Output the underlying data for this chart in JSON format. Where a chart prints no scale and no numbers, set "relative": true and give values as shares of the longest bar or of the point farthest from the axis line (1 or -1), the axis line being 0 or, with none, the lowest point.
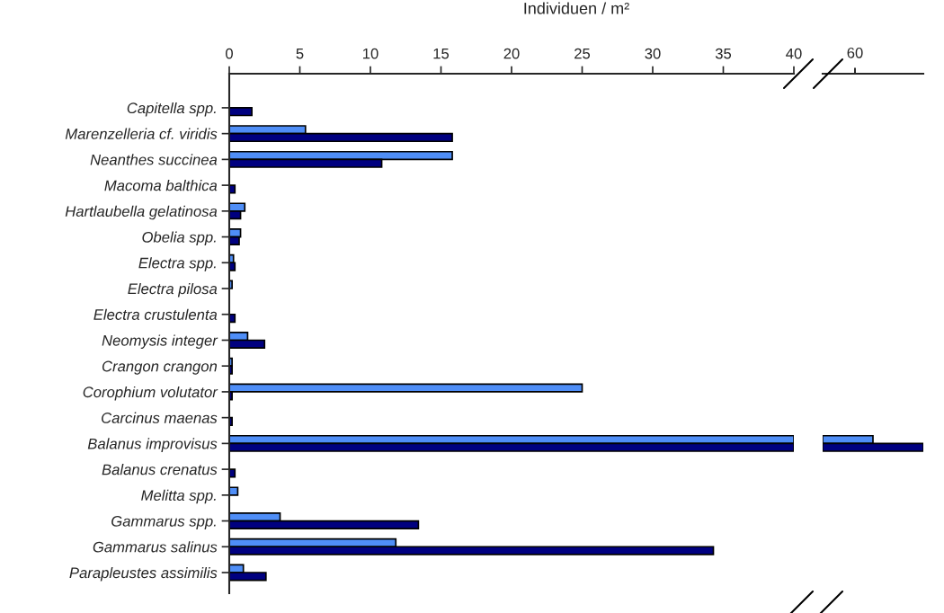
{
  "chart_data": [
    {
      "type": "bar",
      "orientation": "horizontal",
      "xlabel": "Individuen / m²",
      "categories": [
        "Capitella spp.",
        "Marenzelleria cf. viridis",
        "Neanthes succinea",
        "Macoma balthica",
        "Hartlaubella gelatinosa",
        "Obelia spp.",
        "Electra spp.",
        "Electra pilosa",
        "Electra crustulenta",
        "Neomysis integer",
        "Crangon crangon",
        "Corophium volutator",
        "Carcinus maenas",
        "Balanus improvisus",
        "Balanus crenatus",
        "Melitta spp.",
        "Gammarus spp.",
        "Gammarus salinus",
        "Parapleustes assimilis"
      ],
      "series": [
        {
          "color": "#4f8ef7",
          "values": [
            null,
            5.4,
            15.8,
            null,
            1.1,
            0.8,
            0.3,
            0.2,
            null,
            1.3,
            0.2,
            25.0,
            null,
            40,
            null,
            0.6,
            3.6,
            11.8,
            1.0
          ]
        },
        {
          "color": "#000080",
          "values": [
            1.6,
            15.8,
            10.8,
            0.4,
            0.8,
            0.7,
            0.4,
            null,
            0.4,
            2.5,
            0.2,
            0.2,
            0.2,
            40,
            0.4,
            null,
            13.4,
            34.3,
            2.6
          ]
        }
      ],
      "xlim": [
        0,
        40
      ],
      "xticks": [
        0,
        5,
        10,
        15,
        20,
        25,
        30,
        35,
        40
      ]
    },
    {
      "type": "bar",
      "orientation": "horizontal",
      "relative": true,
      "annotations": [
        "60"
      ],
      "categories": [
        null,
        null,
        null,
        null,
        null,
        null,
        null,
        null,
        null,
        null,
        null,
        null,
        null,
        null,
        null,
        null,
        null,
        null,
        null
      ],
      "series": [
        {
          "color": "#4f8ef7",
          "values": [
            null,
            null,
            null,
            null,
            null,
            null,
            null,
            null,
            null,
            null,
            null,
            null,
            null,
            0.5,
            null,
            null,
            null,
            null,
            null
          ]
        },
        {
          "color": "#000080",
          "values": [
            null,
            null,
            null,
            null,
            null,
            null,
            null,
            null,
            null,
            null,
            null,
            null,
            null,
            1.0,
            null,
            null,
            null,
            null,
            null
          ]
        }
      ]
    }
  ]
}
